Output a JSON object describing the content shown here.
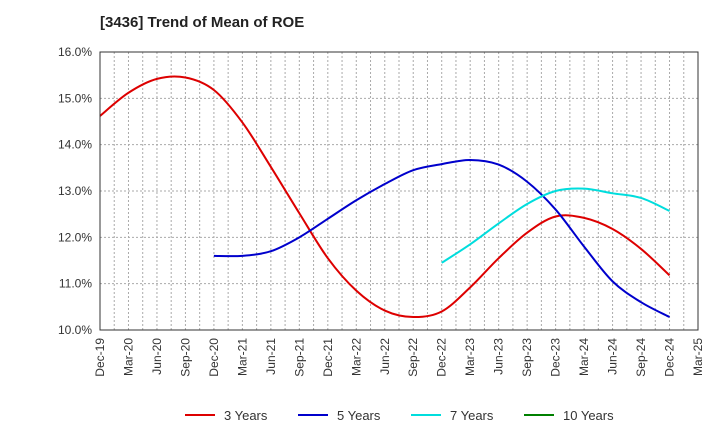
{
  "chart_data": {
    "type": "line",
    "title": "[3436]  Trend of Mean of ROE",
    "xlabel": "",
    "ylabel": "",
    "x_tick_labels": [
      "Dec-19",
      "Mar-20",
      "Jun-20",
      "Sep-20",
      "Dec-20",
      "Mar-21",
      "Jun-21",
      "Sep-21",
      "Dec-21",
      "Mar-22",
      "Jun-22",
      "Sep-22",
      "Dec-22",
      "Mar-23",
      "Jun-23",
      "Sep-23",
      "Dec-23",
      "Mar-24",
      "Jun-24",
      "Sep-24",
      "Dec-24",
      "Mar-25"
    ],
    "y_tick_labels": [
      "16.0%",
      "15.0%",
      "14.0%",
      "13.0%",
      "12.0%",
      "11.0%",
      "10.0%"
    ],
    "ylim": [
      10.0,
      16.0
    ],
    "grid": true,
    "legend_position": "bottom",
    "series": [
      {
        "name": "3 Years",
        "color": "#dd0000",
        "values": [
          14.62,
          15.12,
          15.42,
          15.45,
          15.18,
          14.48,
          13.52,
          12.52,
          11.55,
          10.85,
          10.42,
          10.28,
          10.4,
          10.92,
          11.55,
          12.1,
          12.45,
          12.42,
          12.18,
          11.75,
          11.18
        ]
      },
      {
        "name": "5 Years",
        "color": "#0000cc",
        "values": [
          null,
          null,
          null,
          null,
          11.6,
          11.6,
          11.7,
          12.0,
          12.4,
          12.8,
          13.15,
          13.45,
          13.58,
          13.67,
          13.57,
          13.2,
          12.6,
          11.8,
          11.05,
          10.6,
          10.28
        ]
      },
      {
        "name": "7 Years",
        "color": "#00dddd",
        "values": [
          null,
          null,
          null,
          null,
          null,
          null,
          null,
          null,
          null,
          null,
          null,
          null,
          11.45,
          11.85,
          12.3,
          12.72,
          13.0,
          13.05,
          12.95,
          12.85,
          12.57
        ]
      },
      {
        "name": "10 Years",
        "color": "#008000",
        "values": []
      }
    ]
  }
}
